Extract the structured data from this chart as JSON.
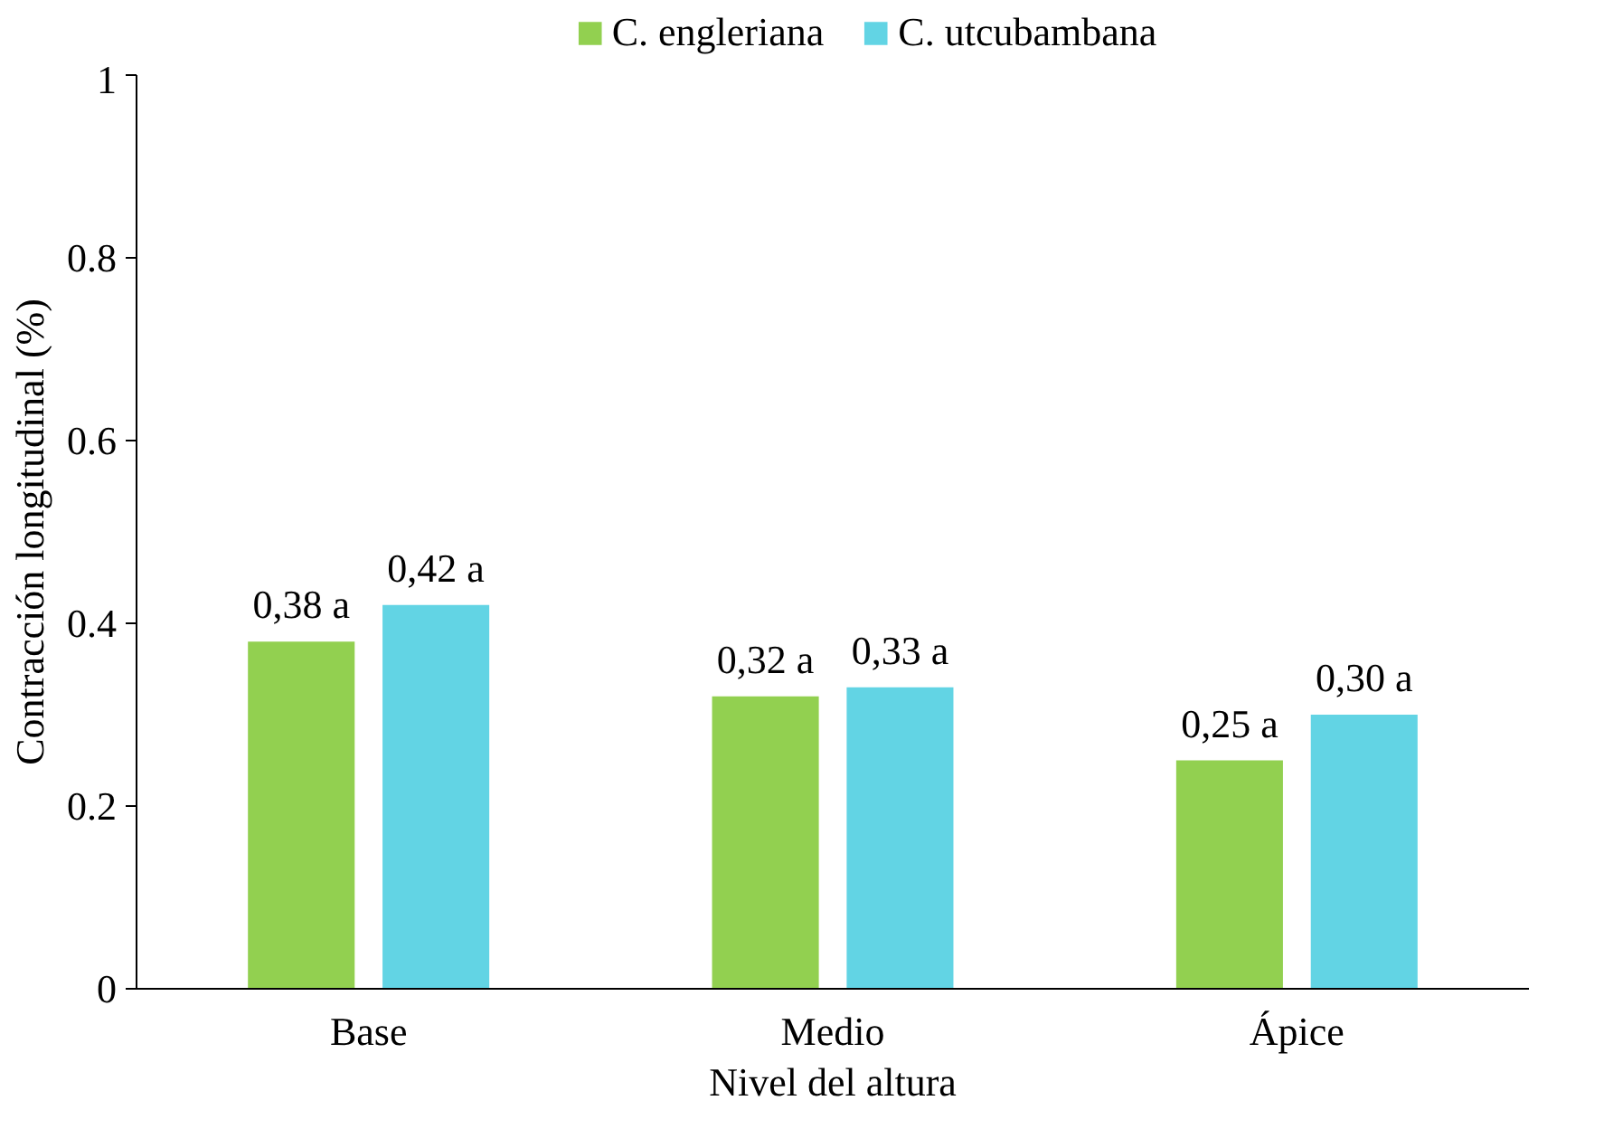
{
  "chart_data": {
    "type": "bar",
    "xlabel": "Nivel del altura",
    "ylabel": "Contracción longitudinal (%)",
    "categories": [
      "Base",
      "Medio",
      "Ápice"
    ],
    "series": [
      {
        "name": "C. engleriana",
        "color": "#92d050",
        "values": [
          0.38,
          0.32,
          0.25
        ],
        "value_labels": [
          "0,38 a",
          "0,32 a",
          "0,25 a"
        ]
      },
      {
        "name": "C. utcubambana",
        "color": "#62d4e4",
        "values": [
          0.42,
          0.33,
          0.3
        ],
        "value_labels": [
          "0,42 a",
          "0,33 a",
          "0,30 a"
        ]
      }
    ],
    "ylim": [
      0,
      1
    ],
    "yticks": [
      0,
      0.2,
      0.4,
      0.6,
      0.8,
      1
    ],
    "grid": false,
    "legend": "top"
  }
}
